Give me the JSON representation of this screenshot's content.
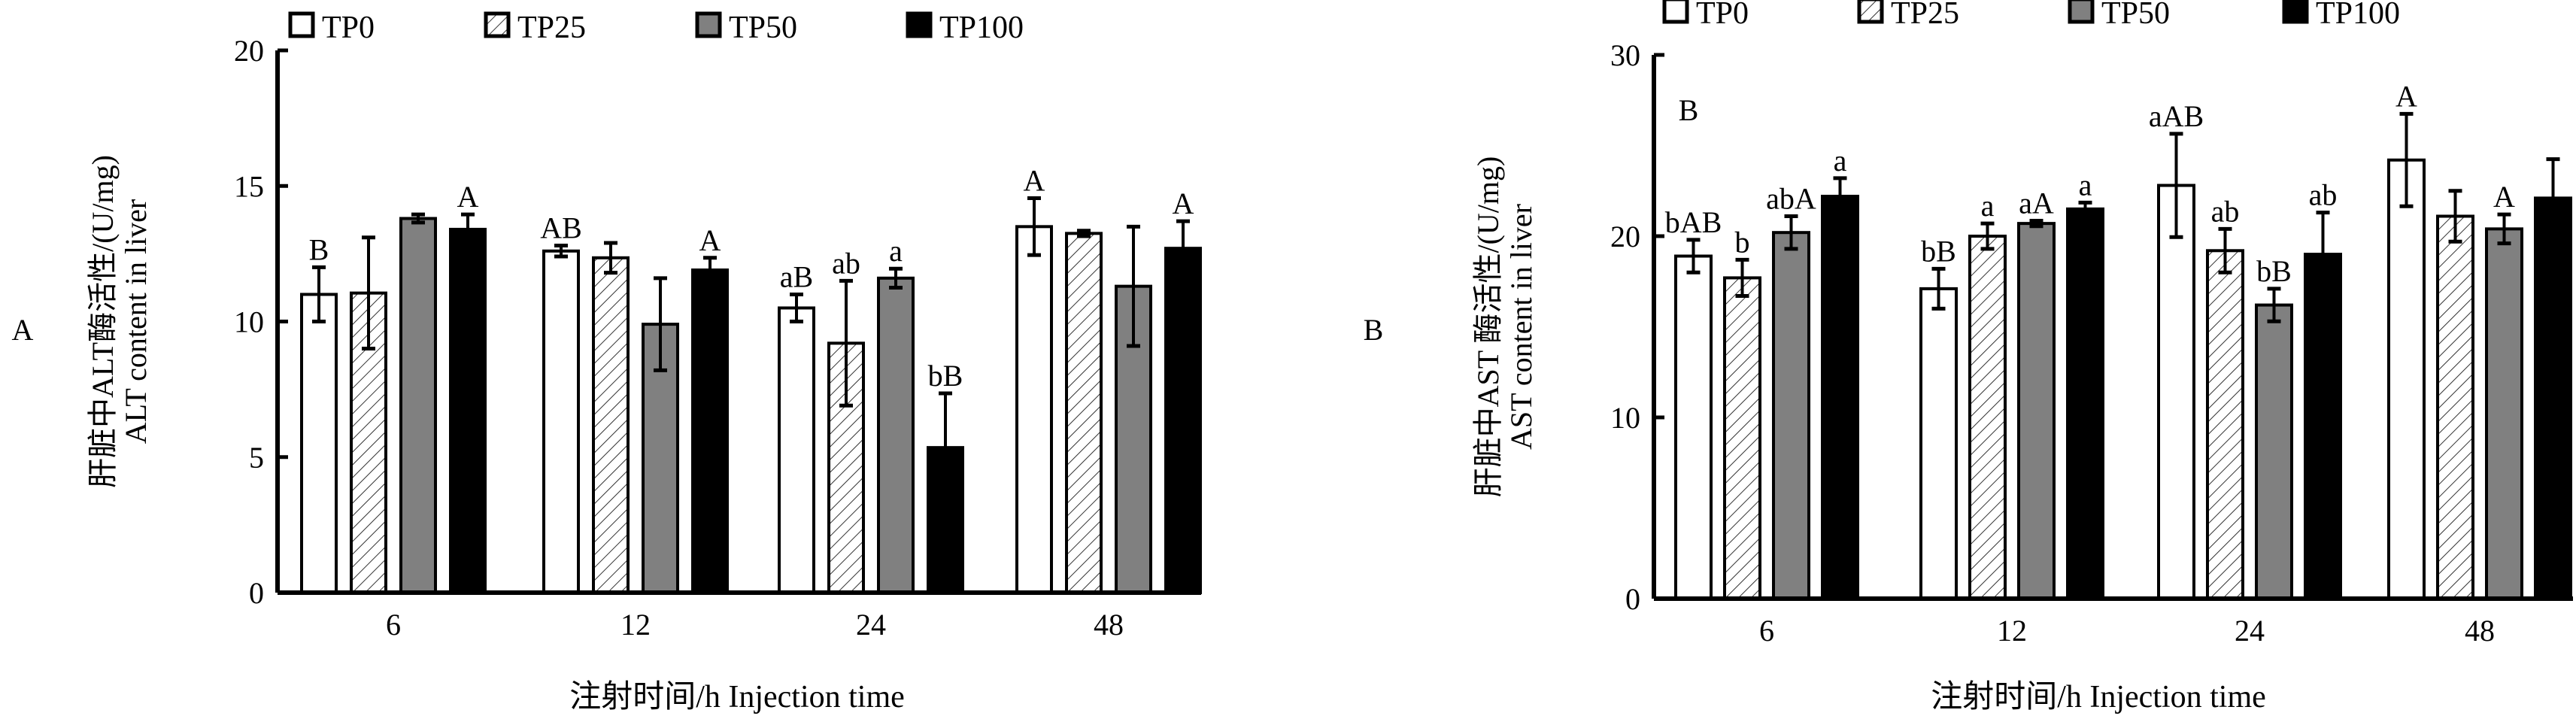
{
  "chart_data": [
    {
      "type": "bar",
      "panel_label": "A",
      "inner_label": "",
      "title": "",
      "xlabel": "注射时间/h  Injection time",
      "ylabel": [
        "肝脏中ALT酶活性/(U/mg)",
        "ALT content in liver"
      ],
      "categories": [
        "6",
        "12",
        "24",
        "48"
      ],
      "ylim": [
        0,
        20
      ],
      "yticks": [
        "0",
        "5",
        "10",
        "15",
        "20"
      ],
      "legend": [
        "TP0",
        "TP25",
        "TP50",
        "TP100"
      ],
      "legend_position": "top",
      "series": [
        {
          "name": "TP0",
          "values": [
            11.0,
            12.6,
            10.5,
            13.5
          ],
          "errors": [
            1.0,
            0.2,
            0.5,
            1.05
          ],
          "labels": [
            "B",
            "AB",
            "aB",
            "A"
          ]
        },
        {
          "name": "TP25",
          "values": [
            11.05,
            12.35,
            9.2,
            13.25
          ],
          "errors": [
            2.05,
            0.55,
            2.3,
            0.1
          ],
          "labels": [
            "",
            "",
            "ab",
            ""
          ]
        },
        {
          "name": "TP50",
          "values": [
            13.8,
            9.9,
            11.6,
            11.3
          ],
          "errors": [
            0.15,
            1.7,
            0.35,
            2.2
          ],
          "labels": [
            "",
            "",
            "a",
            ""
          ]
        },
        {
          "name": "TP100",
          "values": [
            13.4,
            11.9,
            5.35,
            12.7
          ],
          "errors": [
            0.55,
            0.45,
            2.0,
            1.0
          ],
          "labels": [
            "A",
            "A",
            "bB",
            "A"
          ]
        }
      ]
    },
    {
      "type": "bar",
      "panel_label": "B",
      "inner_label": "B",
      "title": "",
      "xlabel": "注射时间/h  Injection time",
      "ylabel": [
        "肝脏中AST 酶活性/(U/mg)",
        "AST content in liver"
      ],
      "categories": [
        "6",
        "12",
        "24",
        "48"
      ],
      "ylim": [
        0,
        30
      ],
      "yticks": [
        "0",
        "10",
        "20",
        "30"
      ],
      "legend": [
        "TP0",
        "TP25",
        "TP50",
        "TP100"
      ],
      "legend_position": "top",
      "series": [
        {
          "name": "TP0",
          "values": [
            18.9,
            17.1,
            22.8,
            24.2
          ],
          "errors": [
            0.9,
            1.1,
            2.85,
            2.55
          ],
          "labels": [
            "bAB",
            "bB",
            "aAB",
            "A"
          ]
        },
        {
          "name": "TP25",
          "values": [
            17.7,
            20.0,
            19.2,
            21.1
          ],
          "errors": [
            1.0,
            0.7,
            1.2,
            1.4
          ],
          "labels": [
            "b",
            "a",
            "ab",
            ""
          ]
        },
        {
          "name": "TP50",
          "values": [
            20.2,
            20.7,
            16.2,
            20.4
          ],
          "errors": [
            0.9,
            0.15,
            0.9,
            0.8
          ],
          "labels": [
            "abA",
            "aA",
            "bB",
            "A"
          ]
        },
        {
          "name": "TP100",
          "values": [
            22.2,
            21.5,
            19.0,
            22.1
          ],
          "errors": [
            1.0,
            0.35,
            2.3,
            2.15
          ],
          "labels": [
            "a",
            "a",
            "ab",
            ""
          ]
        }
      ]
    }
  ]
}
